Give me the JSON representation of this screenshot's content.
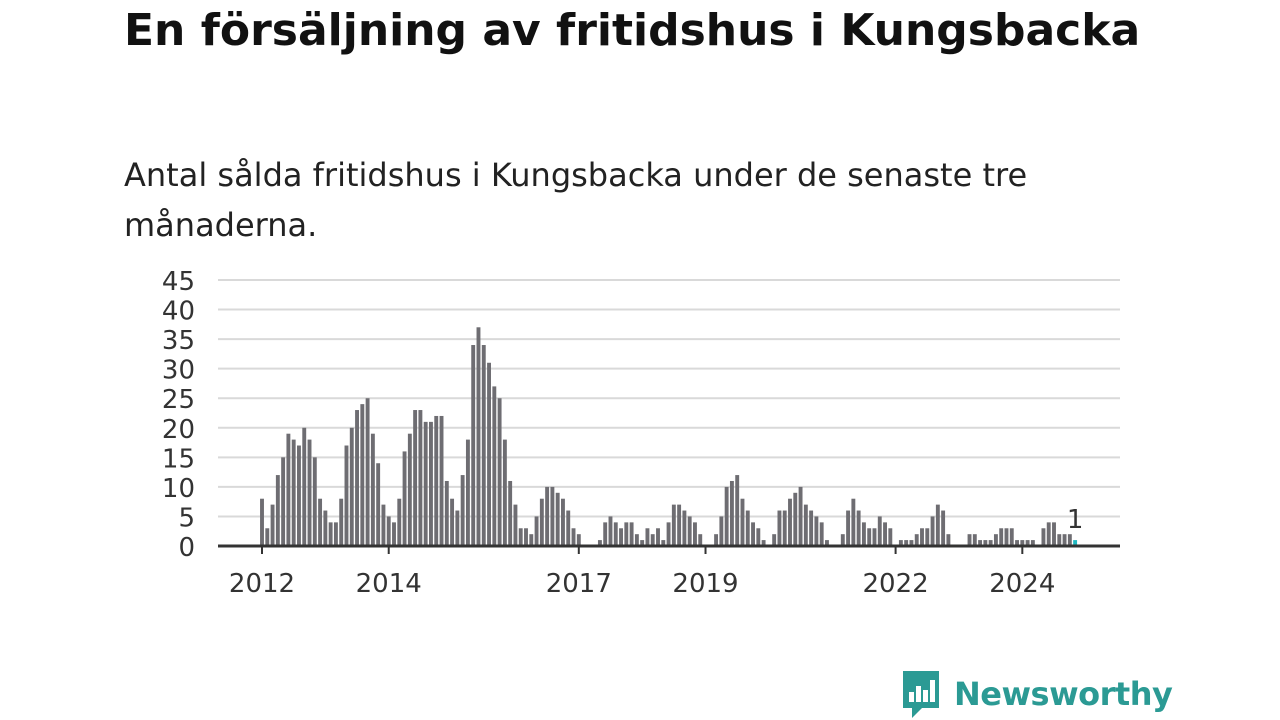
{
  "title": "En försäljning av fritidshus i Kungsbacka",
  "subtitle": "Antal sålda fritidshus i Kungsbacka under de senaste tre månaderna.",
  "brand": "Newsworthy",
  "colors": {
    "bar": "#6e6d72",
    "highlight": "#1fb8c1",
    "grid": "#d9d9d9",
    "axis": "#333333",
    "brand": "#2b9a94"
  },
  "icons": {
    "logo": "bar-chart-speech-bubble-icon"
  },
  "chart_data": {
    "type": "bar",
    "title": "",
    "xlabel": "",
    "ylabel": "",
    "ylim": [
      0,
      45
    ],
    "yticks": [
      0,
      5,
      10,
      15,
      20,
      25,
      30,
      35,
      40,
      45
    ],
    "grid": true,
    "x_start": "2012-01",
    "x_end": "2025-03",
    "xticks": [
      "2012",
      "2014",
      "2017",
      "2019",
      "2022",
      "2024"
    ],
    "highlight_label": "1",
    "values": [
      8,
      3,
      7,
      12,
      15,
      19,
      18,
      17,
      20,
      18,
      15,
      8,
      6,
      4,
      4,
      8,
      17,
      20,
      23,
      24,
      25,
      19,
      14,
      7,
      5,
      4,
      8,
      16,
      19,
      23,
      23,
      21,
      21,
      22,
      22,
      11,
      8,
      6,
      12,
      18,
      34,
      37,
      34,
      31,
      27,
      25,
      18,
      11,
      7,
      3,
      3,
      2,
      5,
      8,
      10,
      10,
      9,
      8,
      6,
      3,
      2,
      0,
      0,
      0,
      1,
      4,
      5,
      4,
      3,
      4,
      4,
      2,
      1,
      3,
      2,
      3,
      1,
      4,
      7,
      7,
      6,
      5,
      4,
      2,
      0,
      0,
      2,
      5,
      10,
      11,
      12,
      8,
      6,
      4,
      3,
      1,
      0,
      2,
      6,
      6,
      8,
      9,
      10,
      7,
      6,
      5,
      4,
      1,
      0,
      0,
      2,
      6,
      8,
      6,
      4,
      3,
      3,
      5,
      4,
      3,
      0,
      1,
      1,
      1,
      2,
      3,
      3,
      5,
      7,
      6,
      2,
      0,
      0,
      0,
      2,
      2,
      1,
      1,
      1,
      2,
      3,
      3,
      3,
      1,
      1,
      1,
      1,
      0,
      3,
      4,
      4,
      2,
      2,
      2,
      1
    ]
  }
}
